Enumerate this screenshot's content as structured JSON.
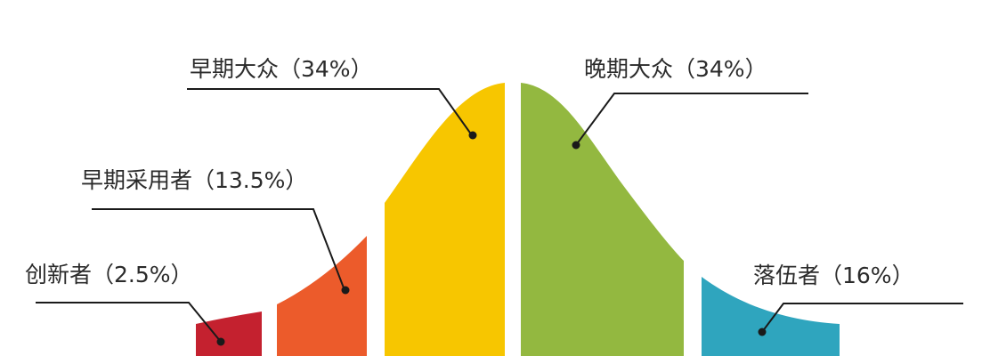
{
  "segments": [
    {
      "id": "innovators",
      "label": "创新者（2.5%）",
      "percent": 2.5,
      "color": "#C4212F"
    },
    {
      "id": "early-adopters",
      "label": "早期采用者（13.5%）",
      "percent": 13.5,
      "color": "#EC5B2B"
    },
    {
      "id": "early-majority",
      "label": "早期大众（34%）",
      "percent": 34,
      "color": "#F7C600"
    },
    {
      "id": "late-majority",
      "label": "晚期大众（34%）",
      "percent": 34,
      "color": "#93B840"
    },
    {
      "id": "laggards",
      "label": "落伍者（16%）",
      "percent": 16,
      "color": "#2FA5BE"
    }
  ]
}
